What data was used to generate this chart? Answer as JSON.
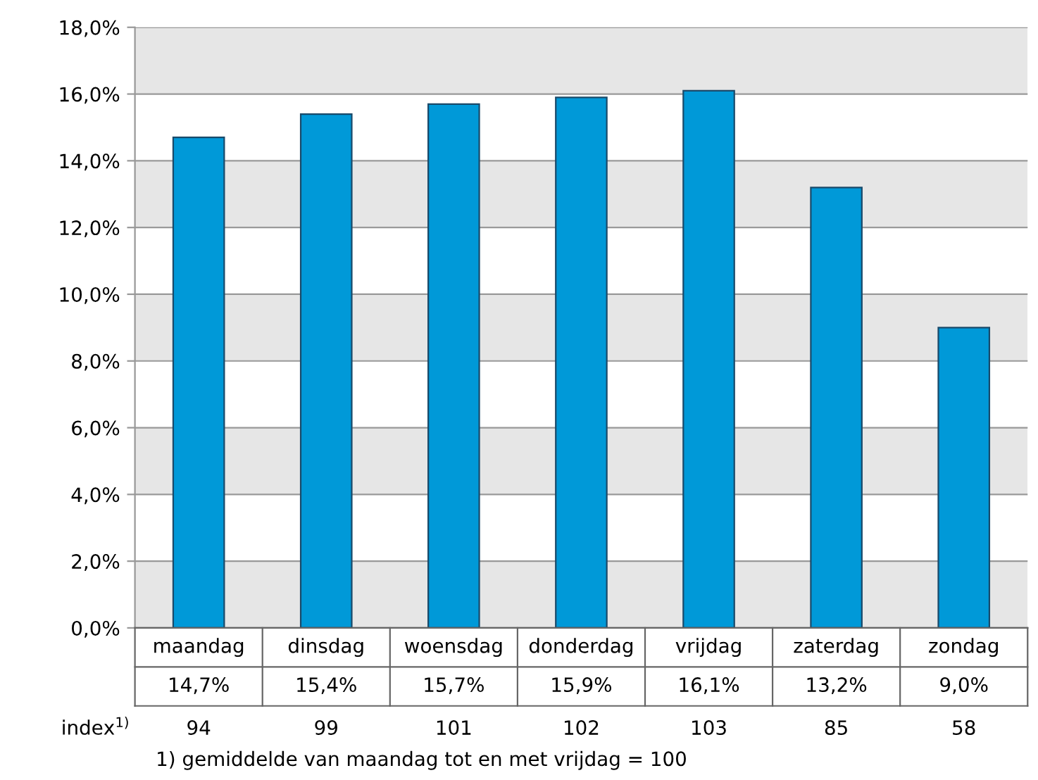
{
  "chart_data": {
    "type": "bar",
    "categories": [
      "maandag",
      "dinsdag",
      "woensdag",
      "donderdag",
      "vrijdag",
      "zaterdag",
      "zondag"
    ],
    "values": [
      14.7,
      15.4,
      15.7,
      15.9,
      16.1,
      13.2,
      9.0
    ],
    "value_labels": [
      "14,7%",
      "15,4%",
      "15,7%",
      "15,9%",
      "16,1%",
      "13,2%",
      "9,0%"
    ],
    "color": "#0099d8",
    "ylim": [
      0,
      18
    ],
    "yticks": [
      {
        "value": 0,
        "label": "0,0%"
      },
      {
        "value": 2,
        "label": "2,0%"
      },
      {
        "value": 4,
        "label": "4,0%"
      },
      {
        "value": 6,
        "label": "6,0%"
      },
      {
        "value": 8,
        "label": "8,0%"
      },
      {
        "value": 10,
        "label": "10,0%"
      },
      {
        "value": 12,
        "label": "12,0%"
      },
      {
        "value": 14,
        "label": "14,0%"
      },
      {
        "value": 16,
        "label": "16,0%"
      },
      {
        "value": 18,
        "label": "18,0%"
      }
    ],
    "grid": "y",
    "annotations": [
      "index$^{1)}$",
      "94",
      "99",
      "101",
      "102",
      "103",
      "85",
      "58",
      "1) gemiddelde van maandag tot en met vrijdag = 100"
    ]
  }
}
